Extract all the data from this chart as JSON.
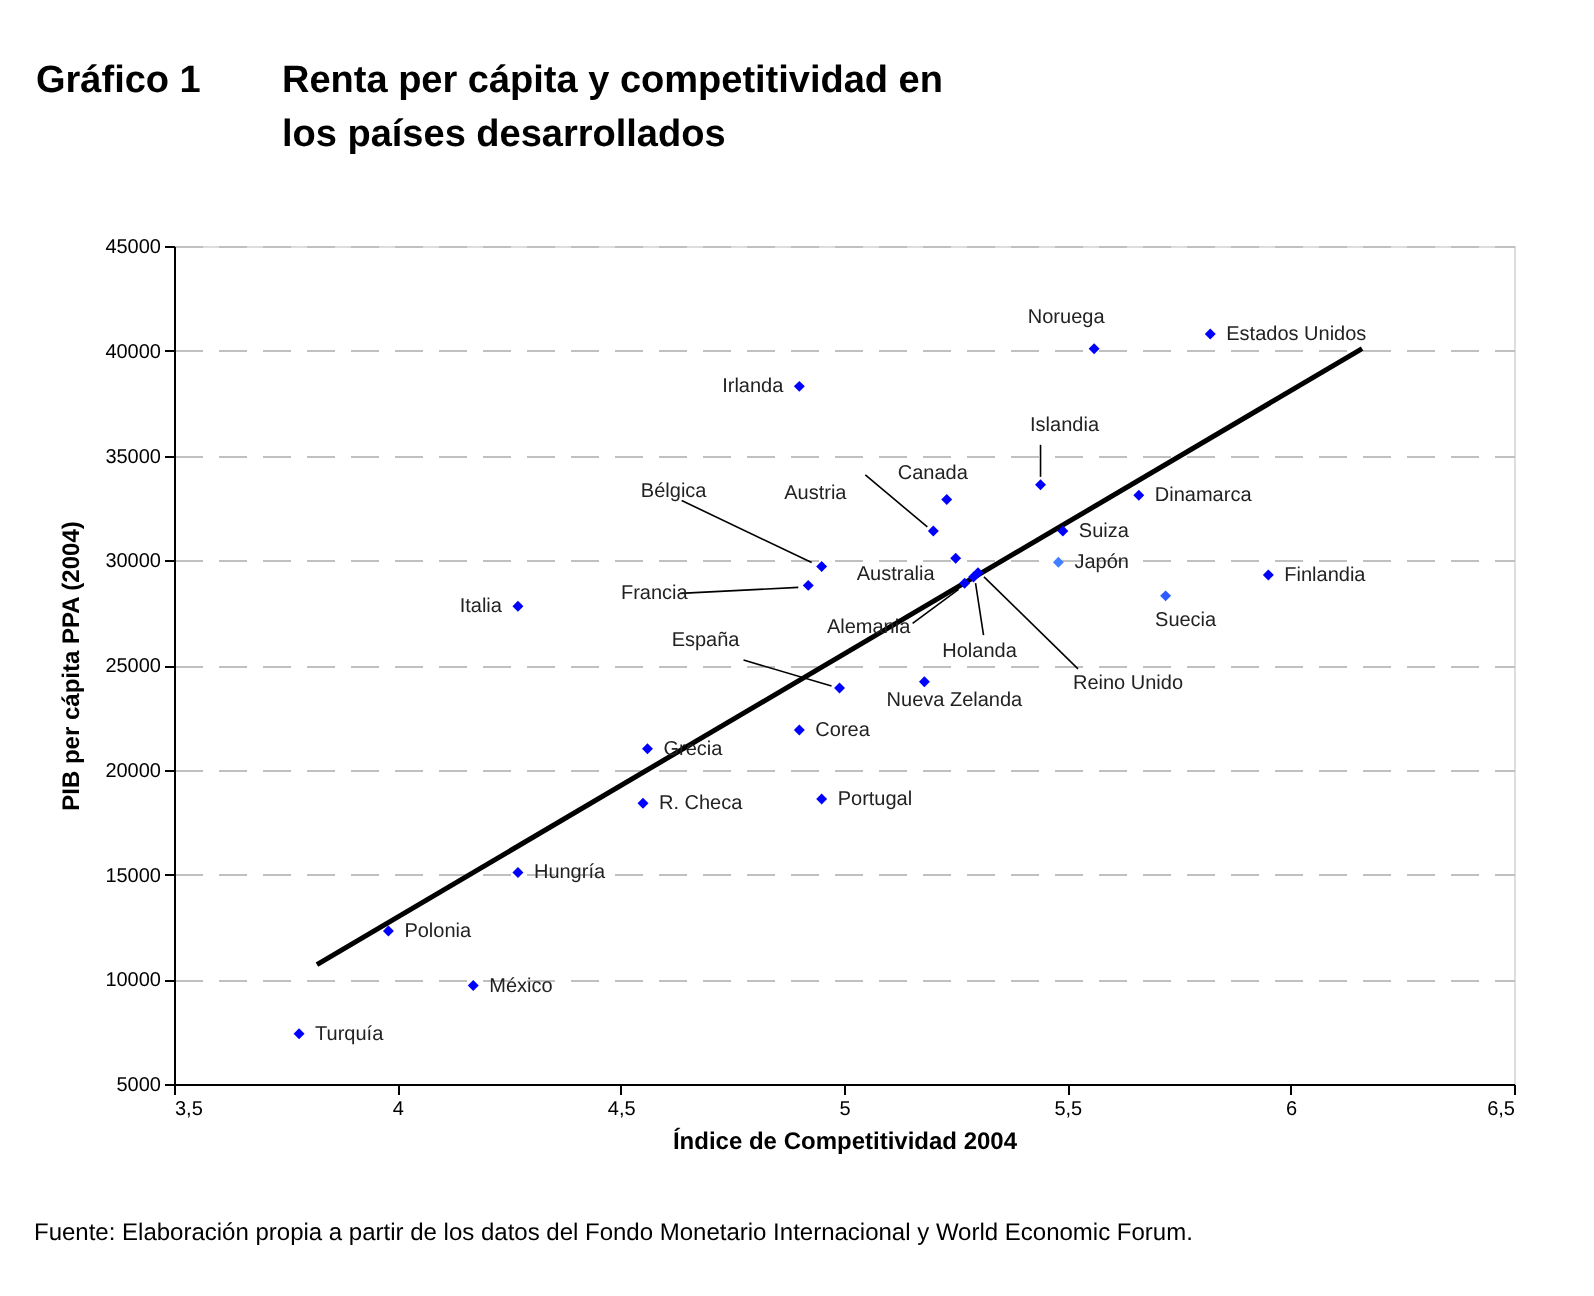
{
  "chart_data": {
    "type": "scatter",
    "title": "Gráfico 1",
    "subtitle": "Renta per cápita y competitividad en los países desarrollados",
    "xlabel": "Índice de Competitividad  2004",
    "ylabel": "PIB per cápita PPA (2004)",
    "xlim": [
      3.5,
      6.5
    ],
    "xticks": [
      {
        "value": 3.5,
        "label": "3,5"
      },
      4,
      {
        "value": 4.5,
        "label": "4,5"
      },
      5,
      {
        "value": 5.5,
        "label": "5,5"
      },
      6,
      {
        "value": 6.5,
        "label": "6,5"
      }
    ],
    "ylim": [
      5000,
      45000
    ],
    "yticks": [
      5000,
      10000,
      15000,
      20000,
      25000,
      30000,
      35000,
      40000,
      45000
    ],
    "grid": "y",
    "series": [
      {
        "marker": "diamond",
        "x": [
          3.78,
          3.98,
          4.17,
          4.27,
          4.27,
          4.56,
          4.55,
          4.9,
          4.9,
          4.95,
          4.95,
          4.92,
          4.99,
          5.18,
          5.2,
          5.23,
          5.25,
          5.27,
          5.29,
          5.3,
          5.44,
          5.49,
          5.48,
          5.56,
          5.66,
          5.72,
          5.82,
          5.95
        ],
        "values": [
          7400,
          12300,
          9700,
          15100,
          27800,
          21000,
          18400,
          21900,
          38300,
          18600,
          29700,
          28800,
          23900,
          24200,
          31400,
          32900,
          30100,
          28900,
          29200,
          29400,
          33600,
          31400,
          29900,
          40100,
          33100,
          28300,
          40800,
          29300
        ],
        "colors": [
          "#0000ff",
          "#0000ff",
          "#0000ff",
          "#0000ff",
          "#0000ff",
          "#0000ff",
          "#0000ff",
          "#0000ff",
          "#0000ff",
          "#0000ff",
          "#0000ff",
          "#0000ff",
          "#0000ff",
          "#0000ff",
          "#0000ff",
          "#0000ff",
          "#0000ff",
          "#0000ff",
          "#0000ff",
          "#0000ff",
          "#0000ff",
          "#0000ff",
          "#4080ff",
          "#0000ff",
          "#0000ff",
          "#2a5cff",
          "#0000ff",
          "#0000ff"
        ]
      },
      {
        "type": "line",
        "marker": "none",
        "line_style": "solid",
        "color": "#000000",
        "x": [
          3.82,
          6.16
        ],
        "values": [
          10700,
          40100
        ]
      }
    ],
    "annotations": [
      {
        "text": "Turquía",
        "x": 3.78,
        "y": 7400
      },
      {
        "text": "Polonia",
        "x": 3.98,
        "y": 12300
      },
      {
        "text": "México",
        "x": 4.17,
        "y": 9700
      },
      {
        "text": "Hungría",
        "x": 4.27,
        "y": 15100
      },
      {
        "text": "Italia",
        "x": 4.27,
        "y": 27800
      },
      {
        "text": "Grecia",
        "x": 4.56,
        "y": 21000
      },
      {
        "text": "R. Checa",
        "x": 4.55,
        "y": 18400
      },
      {
        "text": "Corea",
        "x": 4.9,
        "y": 21900
      },
      {
        "text": "Irlanda",
        "x": 4.9,
        "y": 38300
      },
      {
        "text": "Portugal",
        "x": 4.95,
        "y": 18600
      },
      {
        "text": "Bélgica",
        "x": 4.95,
        "y": 29700
      },
      {
        "text": "Francia",
        "x": 4.92,
        "y": 28800
      },
      {
        "text": "España",
        "x": 4.99,
        "y": 23900
      },
      {
        "text": "Nueva Zelanda",
        "x": 5.18,
        "y": 24200
      },
      {
        "text": "Austria",
        "x": 5.2,
        "y": 31400
      },
      {
        "text": "Canada",
        "x": 5.23,
        "y": 32900
      },
      {
        "text": "Australia",
        "x": 5.25,
        "y": 30100
      },
      {
        "text": "Alemania",
        "x": 5.27,
        "y": 28900
      },
      {
        "text": "Holanda",
        "x": 5.29,
        "y": 29200
      },
      {
        "text": "Reino Unido",
        "x": 5.3,
        "y": 29400
      },
      {
        "text": "Islandia",
        "x": 5.44,
        "y": 33600
      },
      {
        "text": "Suiza",
        "x": 5.49,
        "y": 31400
      },
      {
        "text": "Japón",
        "x": 5.48,
        "y": 29900
      },
      {
        "text": "Noruega",
        "x": 5.56,
        "y": 40100
      },
      {
        "text": "Dinamarca",
        "x": 5.66,
        "y": 33100
      },
      {
        "text": "Suecia",
        "x": 5.72,
        "y": 28300
      },
      {
        "text": "Estados Unidos",
        "x": 5.82,
        "y": 40800
      },
      {
        "text": "Finlandia",
        "x": 5.95,
        "y": 29300
      },
      "Fuente: Elaboración propia a partir de los datos del Fondo Monetario Internacional y World Economic Forum."
    ]
  }
}
